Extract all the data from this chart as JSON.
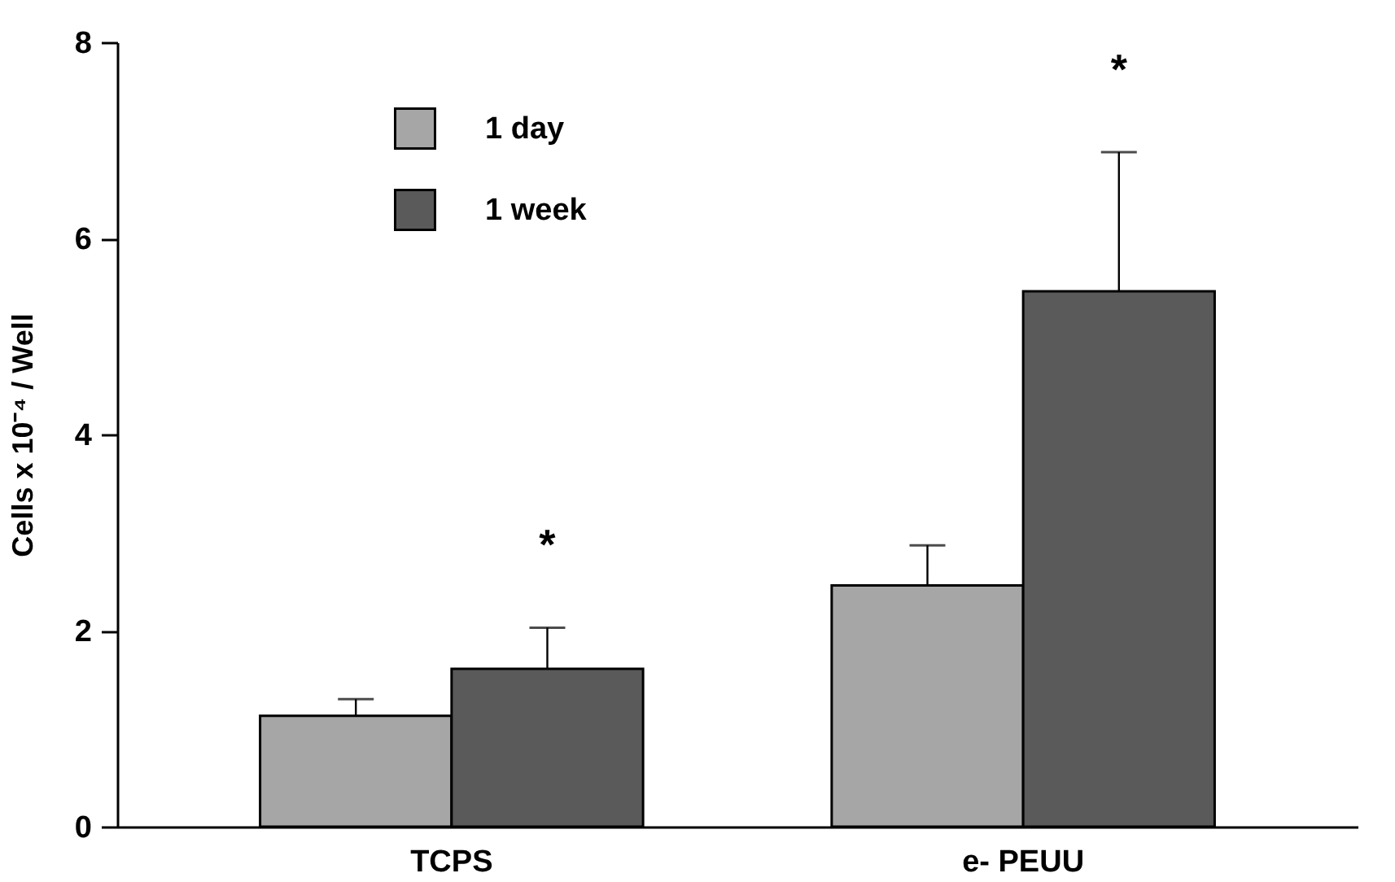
{
  "chart_data": {
    "type": "bar",
    "ylabel": "Cells x 10⁻⁴ / Well",
    "categories": [
      "TCPS",
      "e- PEUU"
    ],
    "series": [
      {
        "name": "1 day",
        "color": "#a6a6a6",
        "values": [
          1.13,
          2.46
        ],
        "errors": [
          0.17,
          0.41
        ]
      },
      {
        "name": "1 week",
        "color": "#5a5a5a",
        "values": [
          1.61,
          5.46
        ],
        "errors": [
          0.42,
          1.42
        ]
      }
    ],
    "ylim": [
      0,
      8
    ],
    "yticks": [
      0,
      2,
      4,
      6,
      8
    ],
    "grid": false,
    "legend": "top left",
    "annotations": [
      "*",
      "*"
    ]
  }
}
